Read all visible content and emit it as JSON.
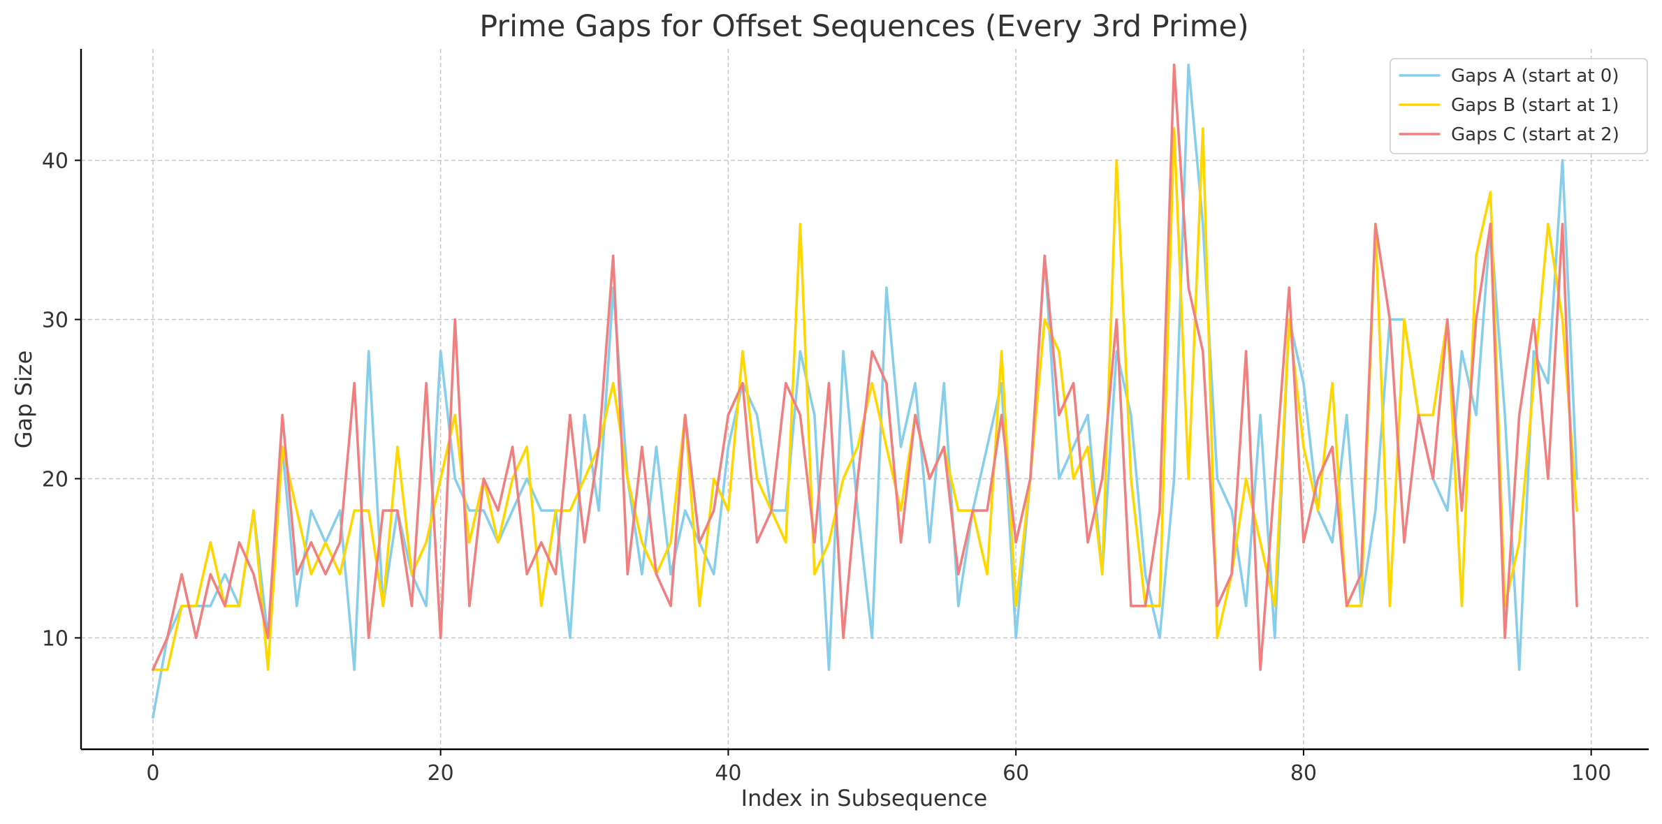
{
  "chart_data": {
    "type": "line",
    "title": "Prime Gaps for Offset Sequences (Every 3rd Prime)",
    "xlabel": "Index in Subsequence",
    "ylabel": "Gap Size",
    "xlim": [
      -5,
      104
    ],
    "ylim": [
      3,
      47
    ],
    "xticks": [
      0,
      20,
      40,
      60,
      80,
      100
    ],
    "yticks": [
      10,
      20,
      30,
      40
    ],
    "grid": true,
    "legend_position": "top-right",
    "series": [
      {
        "name": "Gaps A (start at 0)",
        "color": "#87CEEB",
        "values": [
          5,
          10,
          12,
          12,
          12,
          14,
          12,
          18,
          10,
          22,
          12,
          18,
          16,
          18,
          8,
          28,
          12,
          18,
          14,
          12,
          28,
          20,
          18,
          18,
          16,
          18,
          20,
          18,
          18,
          10,
          24,
          18,
          32,
          20,
          14,
          22,
          14,
          18,
          16,
          14,
          22,
          26,
          24,
          18,
          18,
          28,
          24,
          8,
          28,
          18,
          10,
          32,
          22,
          26,
          16,
          26,
          12,
          18,
          22,
          26,
          10,
          20,
          34,
          20,
          22,
          24,
          14,
          28,
          24,
          14,
          10,
          20,
          46,
          36,
          20,
          18,
          12,
          24,
          10,
          30,
          26,
          18,
          16,
          24,
          12,
          18,
          30,
          30,
          24,
          20,
          18,
          28,
          24,
          36,
          24,
          8,
          28,
          26,
          40,
          20
        ]
      },
      {
        "name": "Gaps B (start at 1)",
        "color": "#FFD700",
        "values": [
          8,
          8,
          12,
          12,
          16,
          12,
          12,
          18,
          8,
          22,
          18,
          14,
          16,
          14,
          18,
          18,
          12,
          22,
          14,
          16,
          20,
          24,
          16,
          20,
          16,
          20,
          22,
          12,
          18,
          18,
          20,
          22,
          26,
          20,
          16,
          14,
          16,
          24,
          12,
          20,
          18,
          28,
          20,
          18,
          16,
          36,
          14,
          16,
          20,
          22,
          26,
          22,
          18,
          24,
          20,
          22,
          18,
          18,
          14,
          28,
          12,
          20,
          30,
          28,
          20,
          22,
          14,
          40,
          20,
          12,
          12,
          42,
          20,
          42,
          10,
          14,
          20,
          16,
          12,
          30,
          22,
          18,
          26,
          12,
          12,
          36,
          12,
          30,
          24,
          24,
          30,
          12,
          34,
          38,
          12,
          16,
          26,
          36,
          30,
          18
        ]
      },
      {
        "name": "Gaps C (start at 2)",
        "color": "#F08080",
        "values": [
          8,
          10,
          14,
          10,
          14,
          12,
          16,
          14,
          10,
          24,
          14,
          16,
          14,
          16,
          26,
          10,
          18,
          18,
          12,
          26,
          10,
          30,
          12,
          20,
          18,
          22,
          14,
          16,
          14,
          24,
          16,
          22,
          34,
          14,
          22,
          14,
          12,
          24,
          16,
          18,
          24,
          26,
          16,
          18,
          26,
          24,
          16,
          26,
          10,
          20,
          28,
          26,
          16,
          24,
          20,
          22,
          14,
          18,
          18,
          24,
          16,
          20,
          34,
          24,
          26,
          16,
          20,
          30,
          12,
          12,
          18,
          46,
          32,
          28,
          12,
          14,
          28,
          8,
          20,
          32,
          16,
          20,
          22,
          12,
          14,
          36,
          30,
          16,
          24,
          20,
          30,
          18,
          30,
          36,
          10,
          24,
          30,
          20,
          36,
          12
        ]
      }
    ]
  }
}
